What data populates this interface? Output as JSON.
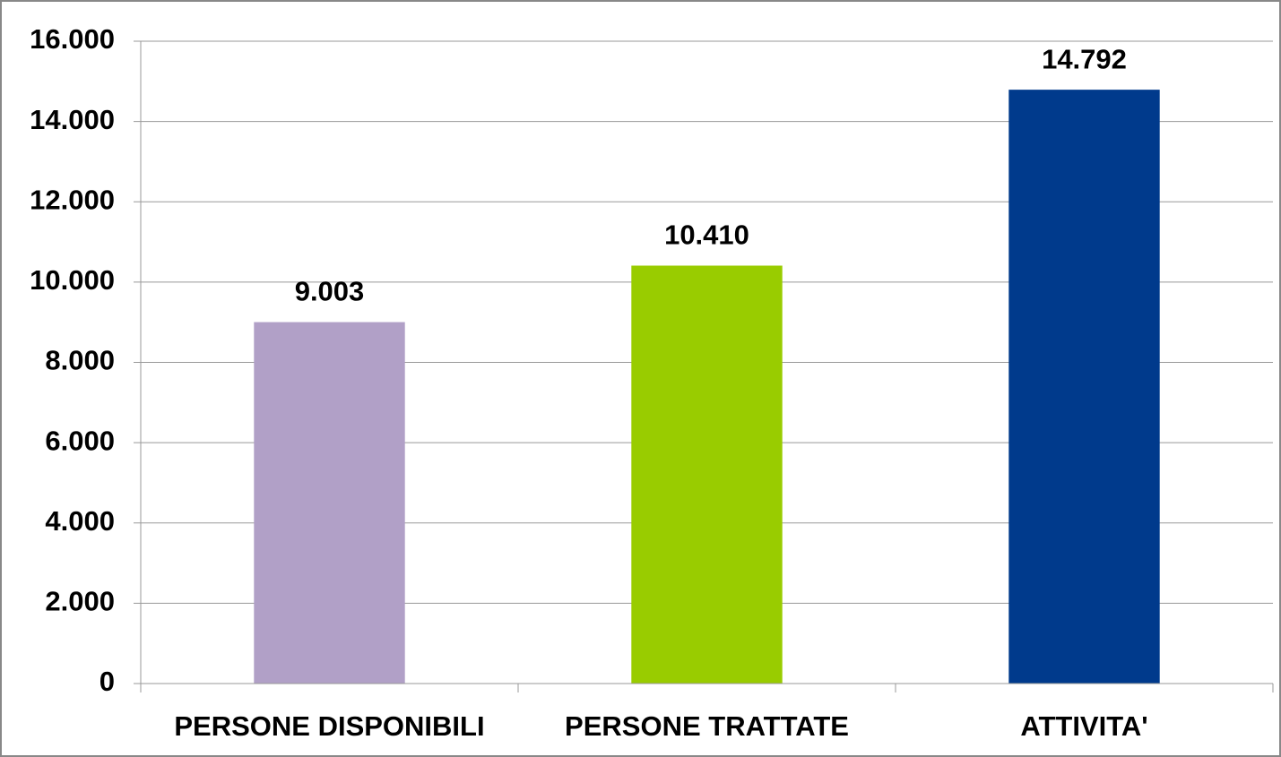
{
  "chart_data": {
    "type": "bar",
    "categories": [
      "PERSONE DISPONIBILI",
      "PERSONE TRATTATE",
      "ATTIVITA'"
    ],
    "values": [
      9003,
      10410,
      14792
    ],
    "value_labels": [
      "9.003",
      "10.410",
      "14.792"
    ],
    "colors": [
      "#b1a0c7",
      "#99cc00",
      "#003a8c"
    ],
    "ylim": [
      0,
      16000
    ],
    "yticks": [
      0,
      {
        "value": 2000,
        "label": "2.000"
      },
      {
        "value": 4000,
        "label": "4.000"
      },
      {
        "value": 6000,
        "label": "6.000"
      },
      {
        "value": 8000,
        "label": "8.000"
      },
      {
        "value": 10000,
        "label": "10.000"
      },
      {
        "value": 12000,
        "label": "12.000"
      },
      {
        "value": 14000,
        "label": "14.000"
      },
      {
        "value": 16000,
        "label": "16.000"
      }
    ],
    "grid": true
  }
}
